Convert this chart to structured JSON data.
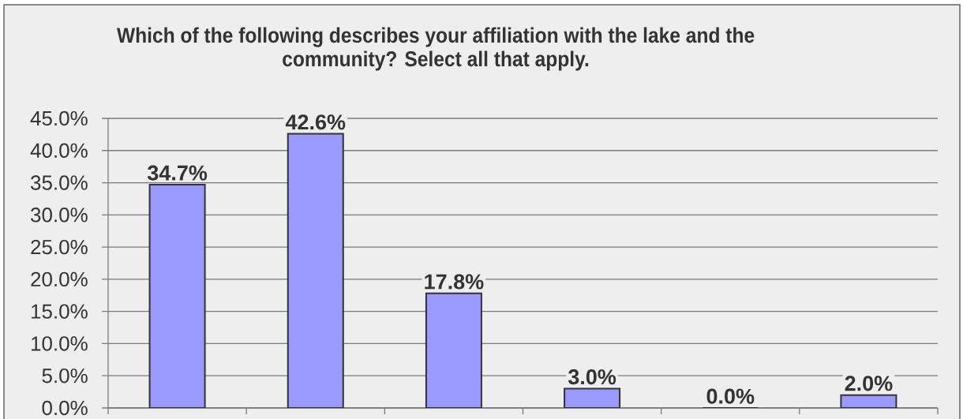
{
  "chart_data": {
    "type": "bar",
    "title": "Which of the following describes your affiliation with the lake and the community? Select all that apply.",
    "categories": [
      null,
      null,
      null,
      null,
      null,
      null
    ],
    "values": [
      34.7,
      42.6,
      17.8,
      3.0,
      0.0,
      2.0
    ],
    "value_labels": [
      "34.7%",
      "42.6%",
      "17.8%",
      "3.0%",
      "0.0%",
      "2.0%"
    ],
    "color": "#9999ff",
    "ylim": [
      0,
      45
    ],
    "yticks": [
      {
        "value": 0,
        "label": "0.0%"
      },
      {
        "value": 5,
        "label": "5.0%"
      },
      {
        "value": 10,
        "label": "10.0%"
      },
      {
        "value": 15,
        "label": "15.0%"
      },
      {
        "value": 20,
        "label": "20.0%"
      },
      {
        "value": 25,
        "label": "25.0%"
      },
      {
        "value": 30,
        "label": "30.0%"
      },
      {
        "value": 35,
        "label": "35.0%"
      },
      {
        "value": 40,
        "label": "40.0%"
      },
      {
        "value": 45,
        "label": "45.0%"
      }
    ],
    "grid": "y"
  }
}
